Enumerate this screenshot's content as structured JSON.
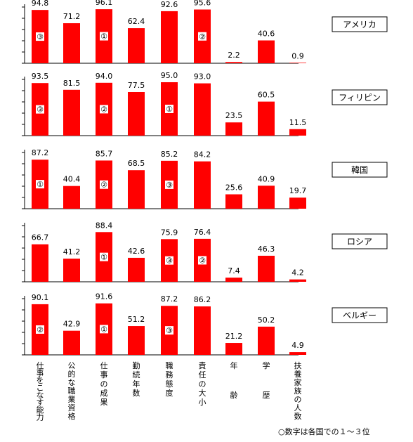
{
  "chart_data": {
    "type": "bar",
    "ylim": [
      0,
      100
    ],
    "categories": [
      "仕事をこなす能力",
      "公的な職業資格",
      "仕事の成果",
      "勤続年数",
      "職務態度",
      "責任の大小",
      "年齢",
      "学歴",
      "扶養家族の人数"
    ],
    "bar_color": "#ff0000",
    "series": [
      {
        "name": "アメリカ",
        "values": [
          94.8,
          71.2,
          96.1,
          62.4,
          92.6,
          95.6,
          2.2,
          40.6,
          0.9
        ],
        "value_labels": [
          "94.8",
          "71.2",
          "96.1",
          "62.4",
          "92.6",
          "95.6",
          "2.2",
          "40.6",
          "0.9"
        ],
        "ranks": [
          "③",
          "",
          "①",
          "",
          "",
          "②",
          "",
          "",
          ""
        ]
      },
      {
        "name": "フィリピン",
        "values": [
          93.5,
          81.5,
          94.0,
          77.5,
          95.0,
          93.0,
          23.5,
          60.5,
          11.5
        ],
        "value_labels": [
          "93.5",
          "81.5",
          "94.0",
          "77.5",
          "95.0",
          "93.0",
          "23.5",
          "60.5",
          "11.5"
        ],
        "ranks": [
          "③",
          "",
          "②",
          "",
          "①",
          "",
          "",
          "",
          ""
        ]
      },
      {
        "name": "韓国",
        "values": [
          87.2,
          40.4,
          85.7,
          68.5,
          85.2,
          84.2,
          25.6,
          40.9,
          19.7
        ],
        "value_labels": [
          "87.2",
          "40.4",
          "85.7",
          "68.5",
          "85.2",
          "84.2",
          "25.6",
          "40.9",
          "19.7"
        ],
        "ranks": [
          "①",
          "",
          "②",
          "",
          "③",
          "",
          "",
          "",
          ""
        ]
      },
      {
        "name": "ロシア",
        "values": [
          66.7,
          41.2,
          88.4,
          42.6,
          75.9,
          76.4,
          7.4,
          46.3,
          4.2
        ],
        "value_labels": [
          "66.7",
          "41.2",
          "88.4",
          "42.6",
          "75.9",
          "76.4",
          "7.4",
          "46.3",
          "4.2"
        ],
        "ranks": [
          "",
          "",
          "①",
          "",
          "③",
          "②",
          "",
          "",
          ""
        ]
      },
      {
        "name": "ベルギー",
        "values": [
          90.1,
          42.9,
          91.6,
          51.2,
          87.2,
          86.2,
          21.2,
          50.2,
          4.9
        ],
        "value_labels": [
          "90.1",
          "42.9",
          "91.6",
          "51.2",
          "87.2",
          "86.2",
          "21.2",
          "50.2",
          "4.9"
        ],
        "ranks": [
          "②",
          "",
          "①",
          "",
          "③",
          "",
          "",
          "",
          ""
        ]
      }
    ],
    "note": "○数字は各国での１～３位"
  }
}
